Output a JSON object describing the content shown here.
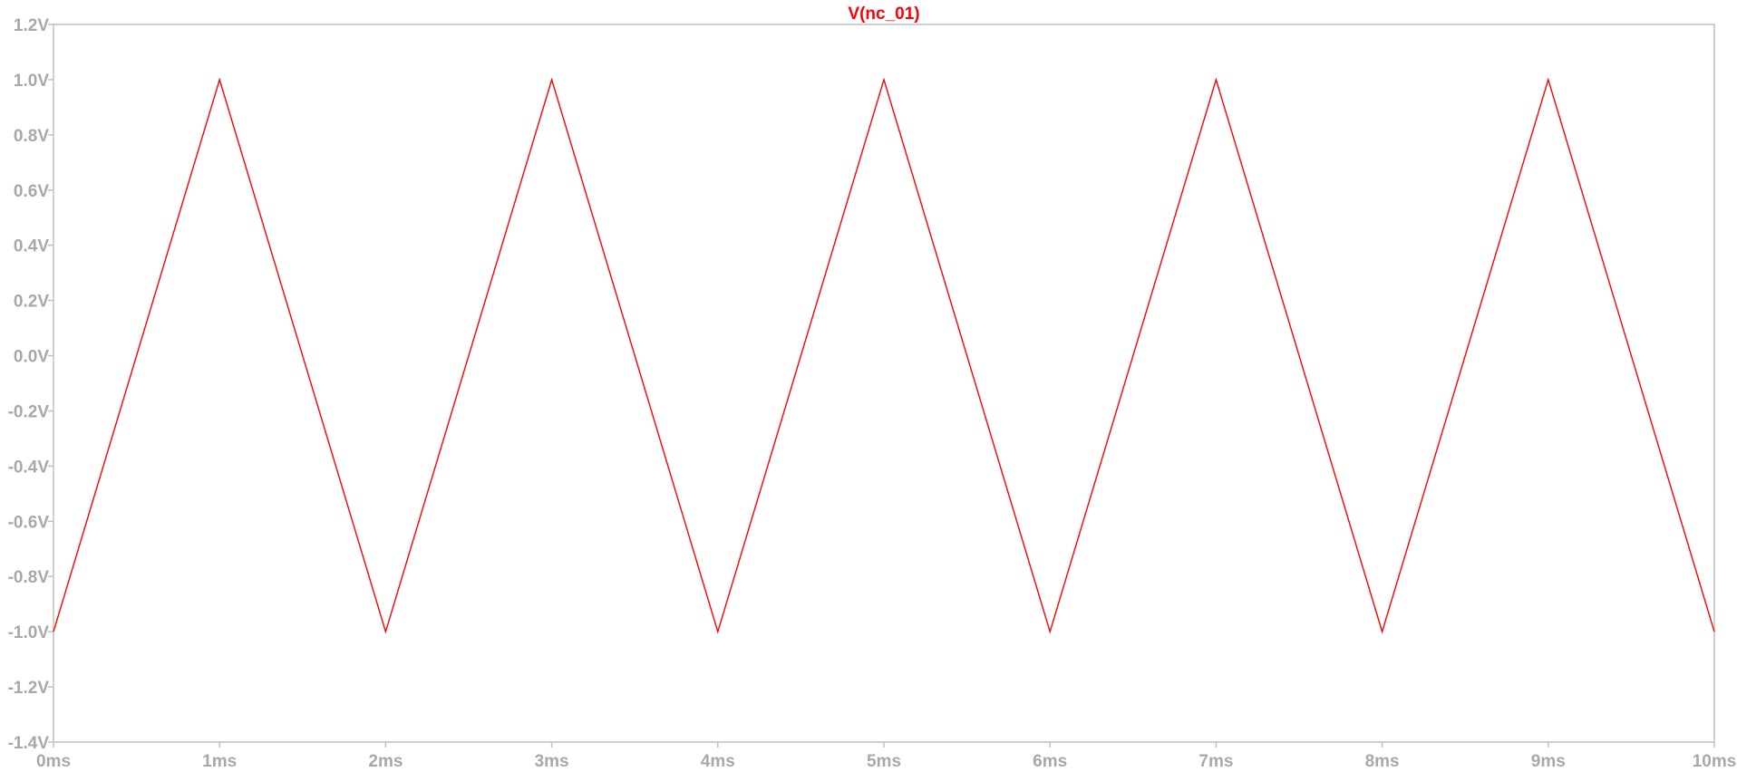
{
  "chart_data": {
    "type": "line",
    "title": "",
    "xlabel": "",
    "ylabel": "",
    "xlim": [
      0,
      10
    ],
    "ylim": [
      -1.4,
      1.2
    ],
    "x_ticks": [
      {
        "value": 0,
        "label": "0ms"
      },
      {
        "value": 1,
        "label": "1ms"
      },
      {
        "value": 2,
        "label": "2ms"
      },
      {
        "value": 3,
        "label": "3ms"
      },
      {
        "value": 4,
        "label": "4ms"
      },
      {
        "value": 5,
        "label": "5ms"
      },
      {
        "value": 6,
        "label": "6ms"
      },
      {
        "value": 7,
        "label": "7ms"
      },
      {
        "value": 8,
        "label": "8ms"
      },
      {
        "value": 9,
        "label": "9ms"
      },
      {
        "value": 10,
        "label": "10ms"
      }
    ],
    "y_ticks": [
      {
        "value": 1.2,
        "label": "1.2V"
      },
      {
        "value": 1.0,
        "label": "1.0V"
      },
      {
        "value": 0.8,
        "label": "0.8V"
      },
      {
        "value": 0.6,
        "label": "0.6V"
      },
      {
        "value": 0.4,
        "label": "0.4V"
      },
      {
        "value": 0.2,
        "label": "0.2V"
      },
      {
        "value": 0.0,
        "label": "0.0V"
      },
      {
        "value": -0.2,
        "label": "-0.2V"
      },
      {
        "value": -0.4,
        "label": "-0.4V"
      },
      {
        "value": -0.6,
        "label": "-0.6V"
      },
      {
        "value": -0.8,
        "label": "-0.8V"
      },
      {
        "value": -1.0,
        "label": "-1.0V"
      },
      {
        "value": -1.2,
        "label": "-1.2V"
      },
      {
        "value": -1.4,
        "label": "-1.4V"
      }
    ],
    "grid": false,
    "legend": "top-center",
    "series": [
      {
        "name": "V(nc_01)",
        "color": "#ff0000",
        "x": [
          0,
          1,
          2,
          3,
          4,
          5,
          6,
          7,
          8,
          9,
          10
        ],
        "y": [
          -1.0,
          1.0,
          -1.0,
          1.0,
          -1.0,
          1.0,
          -1.0,
          1.0,
          -1.0,
          1.0,
          -1.0
        ]
      }
    ]
  },
  "colors": {
    "axis": "#c0c0c0",
    "tick_text": "#a8a8a8",
    "trace": "#ff0000",
    "background": "#ffffff"
  }
}
